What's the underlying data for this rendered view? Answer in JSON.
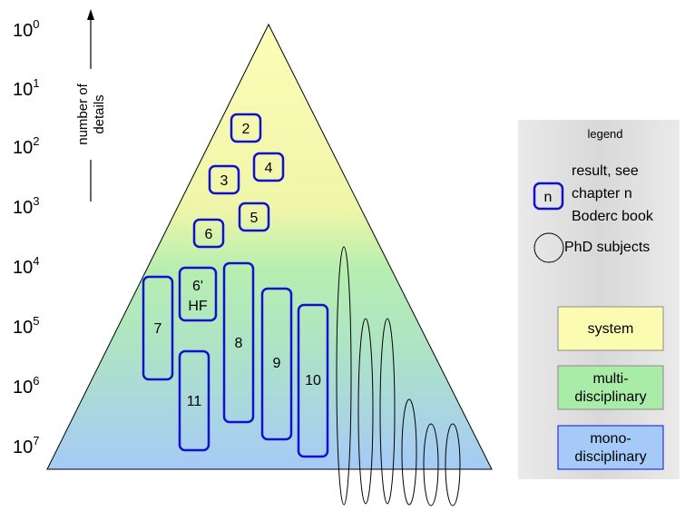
{
  "scale": {
    "base": "10",
    "exponents": [
      "0",
      "1",
      "2",
      "3",
      "4",
      "5",
      "6",
      "7"
    ]
  },
  "axis_label": {
    "line1": "number of",
    "line2": "details"
  },
  "boxes": [
    {
      "id": "2",
      "label": "2"
    },
    {
      "id": "4",
      "label": "4"
    },
    {
      "id": "3",
      "label": "3"
    },
    {
      "id": "5",
      "label": "5"
    },
    {
      "id": "6",
      "label": "6"
    },
    {
      "id": "6p",
      "line1": "6'",
      "line2": "HF"
    },
    {
      "id": "7",
      "label": "7"
    },
    {
      "id": "8",
      "label": "8"
    },
    {
      "id": "9",
      "label": "9"
    },
    {
      "id": "10",
      "label": "10"
    },
    {
      "id": "11",
      "label": "11"
    }
  ],
  "legend": {
    "title": "legend",
    "box_symbol": "n",
    "result_line1": "result, see",
    "result_line2": "chapter n",
    "result_line3": "Boderc book",
    "phd": "PhD subjects",
    "system": "system",
    "multi_line1": "multi-",
    "multi_line2": "disciplinary",
    "mono_line1": "mono-",
    "mono_line2": "disciplinary"
  },
  "colors": {
    "box_border": "#1010d0",
    "top_yellow": "#fbfbb2",
    "mid_green": "#a8eca8",
    "bottom_blue": "#a6caf7",
    "legend_bg": "#e4e4e4"
  }
}
